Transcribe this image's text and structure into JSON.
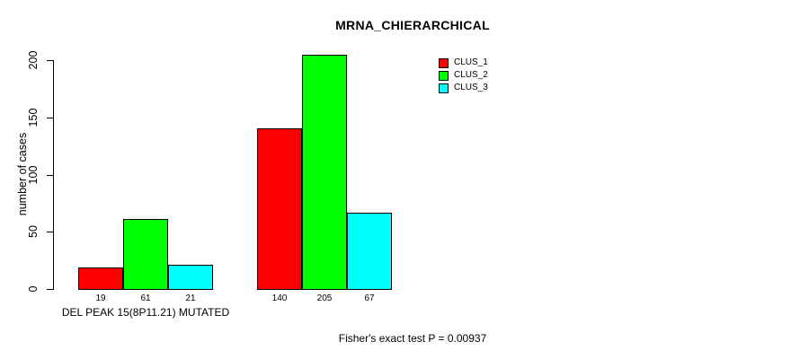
{
  "chart_data": {
    "type": "bar",
    "title": "MRNA_CHIERARCHICAL",
    "ylabel": "number of cases",
    "xlabel": "",
    "ylim": [
      0,
      200
    ],
    "yticks": [
      0,
      50,
      100,
      150,
      200
    ],
    "grid": false,
    "legend_position": "top-right",
    "series": [
      {
        "name": "CLUS_1",
        "color": "#ff0000"
      },
      {
        "name": "CLUS_2",
        "color": "#00ff00"
      },
      {
        "name": "CLUS_3",
        "color": "#00ffff"
      }
    ],
    "groups": [
      {
        "label": "DEL PEAK 15(8P11.21) MUTATED",
        "values": [
          19,
          61,
          21
        ]
      },
      {
        "label": "",
        "values": [
          140,
          205,
          67
        ]
      }
    ],
    "bar_value_labels": [
      19,
      61,
      21,
      140,
      205,
      67
    ],
    "annotation": "Fisher's exact test P = 0.00937",
    "colors": {
      "background": "#ffffff",
      "axis": "#000000",
      "text": "#000000"
    }
  }
}
